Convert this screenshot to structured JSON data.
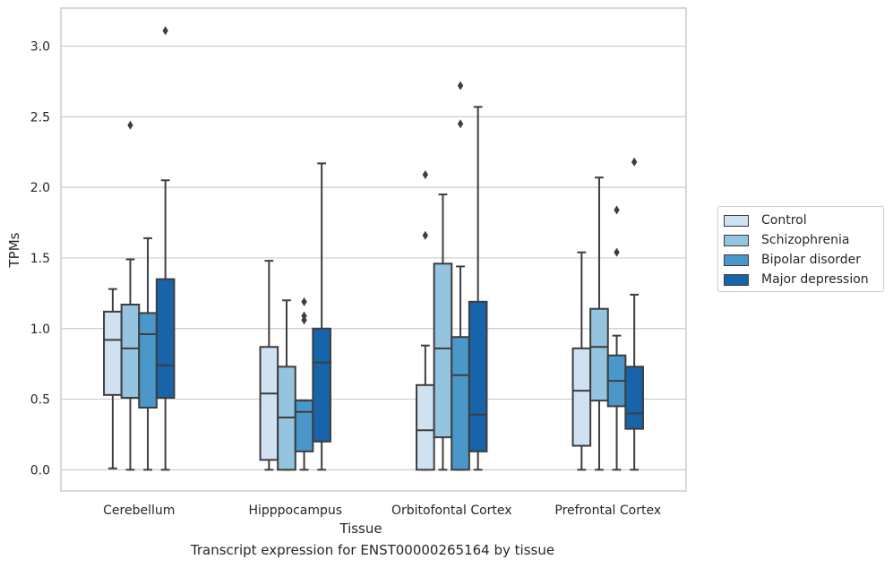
{
  "caption": "Transcript expression for ENST00000265164 by tissue",
  "chart_data": {
    "type": "box",
    "title": "",
    "xlabel": "Tissue",
    "ylabel": "TPMs",
    "ylim": [
      -0.15,
      3.27
    ],
    "yticks": [
      "0.0",
      "0.5",
      "1.0",
      "1.5",
      "2.0",
      "2.5",
      "3.0"
    ],
    "grid": "horizontal",
    "legend_position": "right",
    "categories": [
      "Cerebellum",
      "Hipppocampus",
      "Orbitofontal Cortex",
      "Prefrontal Cortex"
    ],
    "series": [
      {
        "name": "Control",
        "color": "#d0e1f2",
        "boxes": [
          {
            "whislo": 0.01,
            "q1": 0.53,
            "med": 0.92,
            "q3": 1.12,
            "whishi": 1.28,
            "fliers": []
          },
          {
            "whislo": 0.0,
            "q1": 0.07,
            "med": 0.54,
            "q3": 0.87,
            "whishi": 1.48,
            "fliers": []
          },
          {
            "whislo": 0.0,
            "q1": 0.0,
            "med": 0.28,
            "q3": 0.6,
            "whishi": 0.88,
            "fliers": [
              1.66,
              2.09
            ]
          },
          {
            "whislo": 0.0,
            "q1": 0.17,
            "med": 0.56,
            "q3": 0.86,
            "whishi": 1.54,
            "fliers": []
          }
        ]
      },
      {
        "name": "Schizophrenia",
        "color": "#94c4df",
        "boxes": [
          {
            "whislo": 0.0,
            "q1": 0.51,
            "med": 0.86,
            "q3": 1.17,
            "whishi": 1.49,
            "fliers": [
              2.44
            ]
          },
          {
            "whislo": 0.0,
            "q1": 0.0,
            "med": 0.37,
            "q3": 0.73,
            "whishi": 1.2,
            "fliers": []
          },
          {
            "whislo": 0.0,
            "q1": 0.23,
            "med": 0.86,
            "q3": 1.46,
            "whishi": 1.95,
            "fliers": []
          },
          {
            "whislo": 0.0,
            "q1": 0.49,
            "med": 0.87,
            "q3": 1.14,
            "whishi": 2.07,
            "fliers": []
          }
        ]
      },
      {
        "name": "Bipolar disorder",
        "color": "#4a98c9",
        "boxes": [
          {
            "whislo": 0.0,
            "q1": 0.44,
            "med": 0.96,
            "q3": 1.11,
            "whishi": 1.64,
            "fliers": []
          },
          {
            "whislo": 0.0,
            "q1": 0.13,
            "med": 0.41,
            "q3": 0.49,
            "whishi": 0.49,
            "fliers": [
              1.06,
              1.09,
              1.19
            ]
          },
          {
            "whislo": 0.0,
            "q1": 0.0,
            "med": 0.67,
            "q3": 0.94,
            "whishi": 1.44,
            "fliers": [
              2.45,
              2.72
            ]
          },
          {
            "whislo": 0.0,
            "q1": 0.45,
            "med": 0.63,
            "q3": 0.81,
            "whishi": 0.95,
            "fliers": [
              1.54,
              1.84
            ]
          }
        ]
      },
      {
        "name": "Major depression",
        "color": "#1764ab",
        "boxes": [
          {
            "whislo": 0.0,
            "q1": 0.51,
            "med": 0.74,
            "q3": 1.35,
            "whishi": 2.05,
            "fliers": [
              3.11
            ]
          },
          {
            "whislo": 0.0,
            "q1": 0.2,
            "med": 0.76,
            "q3": 1.0,
            "whishi": 2.17,
            "fliers": []
          },
          {
            "whislo": 0.0,
            "q1": 0.13,
            "med": 0.39,
            "q3": 1.19,
            "whishi": 2.57,
            "fliers": []
          },
          {
            "whislo": 0.0,
            "q1": 0.29,
            "med": 0.4,
            "q3": 0.73,
            "whishi": 1.24,
            "fliers": [
              2.18
            ]
          }
        ]
      }
    ]
  }
}
